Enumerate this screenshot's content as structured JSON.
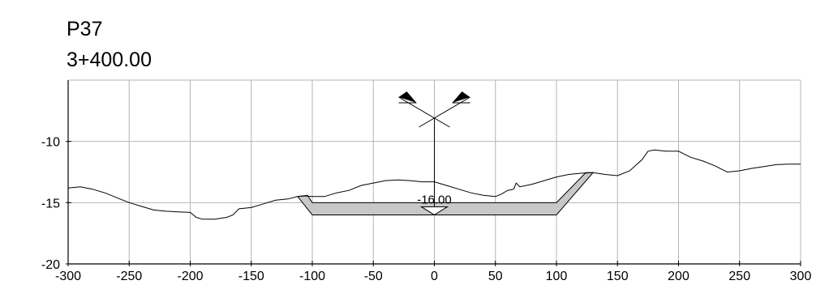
{
  "header": {
    "profile_name": "P37",
    "station": "3+400.00"
  },
  "chart_data": {
    "type": "line",
    "title": "P37",
    "subtitle": "3+400.00",
    "xlabel": "",
    "ylabel": "",
    "xlim": [
      -300,
      300
    ],
    "ylim": [
      -20,
      -5
    ],
    "x_ticks": [
      -300,
      -250,
      -200,
      -150,
      -100,
      -50,
      0,
      50,
      100,
      150,
      200,
      250,
      300
    ],
    "y_ticks": [
      -10,
      -15,
      -20
    ],
    "grid": true,
    "series": [
      {
        "values": [
          [
            -300,
            -13.8
          ],
          [
            -290,
            -13.7
          ],
          [
            -280,
            -13.9
          ],
          [
            -270,
            -14.2
          ],
          [
            -260,
            -14.6
          ],
          [
            -250,
            -15.0
          ],
          [
            -240,
            -15.3
          ],
          [
            -230,
            -15.6
          ],
          [
            -220,
            -15.7
          ],
          [
            -210,
            -15.75
          ],
          [
            -200,
            -15.8
          ],
          [
            -195,
            -16.2
          ],
          [
            -190,
            -16.35
          ],
          [
            -180,
            -16.35
          ],
          [
            -170,
            -16.2
          ],
          [
            -165,
            -16.0
          ],
          [
            -160,
            -15.5
          ],
          [
            -150,
            -15.4
          ],
          [
            -140,
            -15.1
          ],
          [
            -130,
            -14.8
          ],
          [
            -120,
            -14.7
          ],
          [
            -112,
            -14.5
          ],
          [
            -105,
            -14.45
          ],
          [
            -100,
            -14.5
          ],
          [
            -90,
            -14.5
          ],
          [
            -80,
            -14.2
          ],
          [
            -70,
            -14.0
          ],
          [
            -60,
            -13.6
          ],
          [
            -50,
            -13.4
          ],
          [
            -40,
            -13.2
          ],
          [
            -30,
            -13.15
          ],
          [
            -20,
            -13.2
          ],
          [
            -10,
            -13.3
          ],
          [
            0,
            -13.3
          ],
          [
            10,
            -13.6
          ],
          [
            20,
            -13.9
          ],
          [
            30,
            -14.2
          ],
          [
            40,
            -14.4
          ],
          [
            50,
            -14.5
          ],
          [
            55,
            -14.3
          ],
          [
            60,
            -14.0
          ],
          [
            65,
            -13.9
          ],
          [
            67,
            -13.4
          ],
          [
            70,
            -13.7
          ],
          [
            80,
            -13.5
          ],
          [
            90,
            -13.2
          ],
          [
            100,
            -12.9
          ],
          [
            110,
            -12.7
          ],
          [
            120,
            -12.6
          ],
          [
            130,
            -12.55
          ],
          [
            140,
            -12.7
          ],
          [
            150,
            -12.8
          ],
          [
            160,
            -12.4
          ],
          [
            170,
            -11.5
          ],
          [
            175,
            -10.8
          ],
          [
            180,
            -10.7
          ],
          [
            190,
            -10.8
          ],
          [
            200,
            -10.8
          ],
          [
            210,
            -11.3
          ],
          [
            220,
            -11.6
          ],
          [
            230,
            -12.0
          ],
          [
            240,
            -12.5
          ],
          [
            250,
            -12.4
          ],
          [
            260,
            -12.2
          ],
          [
            270,
            -12.05
          ],
          [
            280,
            -11.9
          ],
          [
            290,
            -11.85
          ],
          [
            300,
            -11.85
          ]
        ]
      }
    ],
    "dredge_section": {
      "design_depth_label": "-16.00",
      "bottom_left": [
        -100,
        -16.0
      ],
      "bottom_right": [
        100,
        -16.0
      ],
      "top_left": [
        -112,
        -14.5
      ],
      "top_right": [
        130,
        -12.55
      ],
      "inner_top_left": [
        -100,
        -15.0
      ],
      "inner_top_right": [
        100,
        -15.0
      ],
      "fill_color": "#c8c8c8"
    },
    "centerline_x": 0
  }
}
